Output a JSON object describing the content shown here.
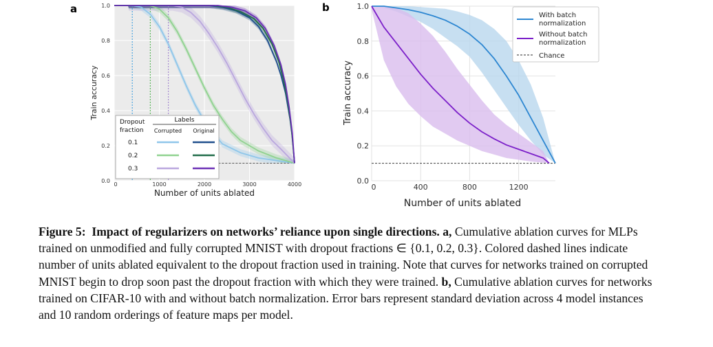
{
  "panel_a": {
    "letter": "a",
    "xlabel": "Number of units ablated",
    "ylabel": "Train accuracy",
    "xticks": [
      "0",
      "1000",
      "2000",
      "3000",
      "4000"
    ],
    "yticks": [
      "0.0",
      "0.2",
      "0.4",
      "0.6",
      "0.8",
      "1.0"
    ],
    "legend": {
      "row_header": "Dropout\nfraction",
      "group_header": "Labels",
      "col_corrupted": "Corrupted",
      "col_original": "Original",
      "rows": [
        "0.1",
        "0.2",
        "0.3"
      ]
    }
  },
  "panel_b": {
    "letter": "b",
    "xlabel": "Number of units ablated",
    "ylabel": "Train accuracy",
    "xticks": [
      "0",
      "400",
      "800",
      "1200"
    ],
    "yticks": [
      "0.0",
      "0.2",
      "0.4",
      "0.6",
      "0.8",
      "1.0"
    ],
    "legend": [
      "With batch normalization",
      "Without batch normalization",
      "Chance"
    ]
  },
  "caption": {
    "label": "Figure 5:",
    "title": "Impact of regularizers on networks’ reliance upon single directions.",
    "a_label": "a,",
    "a_text": "Cumulative ablation curves for MLPs trained on unmodified and fully corrupted MNIST with dropout fractions ∈ {0.1, 0.2, 0.3}. Colored dashed lines indicate number of units ablated equivalent to the dropout fraction used in training. Note that curves for networks trained on corrupted MNIST begin to drop soon past the dropout fraction with which they were trained.",
    "b_label": "b,",
    "b_text": "Cumulative ablation curves for networks trained on CIFAR-10 with and without batch normalization. Error bars represent standard deviation across 4 model instances and 10 random orderings of feature maps per model."
  },
  "colors": {
    "corrupted_0.1": "#8ec6ea",
    "corrupted_0.2": "#8fd28f",
    "corrupted_0.3": "#b9a6de",
    "original_0.1": "#1f4e8c",
    "original_0.2": "#1f6b48",
    "original_0.3": "#6a2fb5",
    "with_bn": "#2c86d1",
    "without_bn": "#7b1fc9",
    "chance": "#555555",
    "plot_bg": "#ebebeb"
  },
  "chart_data": [
    {
      "type": "line",
      "panel": "a",
      "xlabel": "Number of units ablated",
      "ylabel": "Train accuracy",
      "xlim": [
        0,
        4000
      ],
      "ylim": [
        0,
        1
      ],
      "chance": 0.1,
      "dropout_markers": [
        {
          "name": "0.1",
          "x": 400
        },
        {
          "name": "0.2",
          "x": 800
        },
        {
          "name": "0.3",
          "x": 1200
        }
      ],
      "series": [
        {
          "name": "Corrupted 0.1",
          "std": 0.02,
          "points": [
            [
              0,
              1
            ],
            [
              400,
              1
            ],
            [
              600,
              0.99
            ],
            [
              800,
              0.95
            ],
            [
              1000,
              0.88
            ],
            [
              1200,
              0.78
            ],
            [
              1400,
              0.66
            ],
            [
              1600,
              0.54
            ],
            [
              1800,
              0.43
            ],
            [
              2000,
              0.34
            ],
            [
              2200,
              0.27
            ],
            [
              2400,
              0.21
            ],
            [
              2800,
              0.16
            ],
            [
              3200,
              0.13
            ],
            [
              3600,
              0.115
            ],
            [
              4000,
              0.1
            ]
          ]
        },
        {
          "name": "Corrupted 0.2",
          "std": 0.02,
          "points": [
            [
              0,
              1
            ],
            [
              800,
              1
            ],
            [
              1000,
              0.98
            ],
            [
              1200,
              0.93
            ],
            [
              1400,
              0.85
            ],
            [
              1600,
              0.75
            ],
            [
              1800,
              0.64
            ],
            [
              2000,
              0.53
            ],
            [
              2200,
              0.43
            ],
            [
              2400,
              0.35
            ],
            [
              2600,
              0.28
            ],
            [
              2800,
              0.23
            ],
            [
              3200,
              0.17
            ],
            [
              3600,
              0.13
            ],
            [
              4000,
              0.1
            ]
          ]
        },
        {
          "name": "Corrupted 0.3",
          "std": 0.03,
          "points": [
            [
              0,
              1
            ],
            [
              1300,
              1
            ],
            [
              1500,
              0.99
            ],
            [
              1700,
              0.96
            ],
            [
              1900,
              0.91
            ],
            [
              2100,
              0.84
            ],
            [
              2300,
              0.76
            ],
            [
              2500,
              0.67
            ],
            [
              2700,
              0.57
            ],
            [
              2900,
              0.47
            ],
            [
              3100,
              0.38
            ],
            [
              3300,
              0.3
            ],
            [
              3500,
              0.23
            ],
            [
              3700,
              0.18
            ],
            [
              4000,
              0.1
            ]
          ]
        },
        {
          "name": "Original 0.1",
          "std": 0.015,
          "points": [
            [
              0,
              1
            ],
            [
              2100,
              1
            ],
            [
              2400,
              0.99
            ],
            [
              2700,
              0.97
            ],
            [
              3000,
              0.93
            ],
            [
              3200,
              0.88
            ],
            [
              3400,
              0.8
            ],
            [
              3600,
              0.68
            ],
            [
              3700,
              0.6
            ],
            [
              3800,
              0.5
            ],
            [
              3900,
              0.35
            ],
            [
              3950,
              0.25
            ],
            [
              4000,
              0.1
            ]
          ]
        },
        {
          "name": "Original 0.2",
          "std": 0.015,
          "points": [
            [
              0,
              1
            ],
            [
              2200,
              1
            ],
            [
              2500,
              0.99
            ],
            [
              2800,
              0.965
            ],
            [
              3100,
              0.925
            ],
            [
              3300,
              0.87
            ],
            [
              3500,
              0.78
            ],
            [
              3650,
              0.68
            ],
            [
              3750,
              0.58
            ],
            [
              3850,
              0.45
            ],
            [
              3930,
              0.3
            ],
            [
              4000,
              0.1
            ]
          ]
        },
        {
          "name": "Original 0.3",
          "std": 0.015,
          "points": [
            [
              0,
              1
            ],
            [
              2300,
              1
            ],
            [
              2600,
              0.99
            ],
            [
              2900,
              0.97
            ],
            [
              3150,
              0.93
            ],
            [
              3350,
              0.87
            ],
            [
              3550,
              0.77
            ],
            [
              3700,
              0.66
            ],
            [
              3800,
              0.55
            ],
            [
              3880,
              0.42
            ],
            [
              3950,
              0.27
            ],
            [
              4000,
              0.1
            ]
          ]
        }
      ]
    },
    {
      "type": "line",
      "panel": "b",
      "xlabel": "Number of units ablated",
      "ylabel": "Train accuracy",
      "xlim": [
        0,
        1500
      ],
      "ylim": [
        0,
        1
      ],
      "chance": 0.1,
      "series": [
        {
          "name": "With batch normalization",
          "points": [
            [
              0,
              1
            ],
            [
              100,
              1
            ],
            [
              200,
              0.99
            ],
            [
              300,
              0.98
            ],
            [
              400,
              0.965
            ],
            [
              500,
              0.945
            ],
            [
              600,
              0.92
            ],
            [
              700,
              0.885
            ],
            [
              800,
              0.84
            ],
            [
              900,
              0.78
            ],
            [
              1000,
              0.7
            ],
            [
              1100,
              0.6
            ],
            [
              1200,
              0.49
            ],
            [
              1300,
              0.36
            ],
            [
              1400,
              0.23
            ],
            [
              1500,
              0.1
            ]
          ],
          "lower": [
            [
              0,
              1
            ],
            [
              100,
              0.99
            ],
            [
              200,
              0.97
            ],
            [
              300,
              0.94
            ],
            [
              400,
              0.91
            ],
            [
              500,
              0.87
            ],
            [
              600,
              0.82
            ],
            [
              700,
              0.77
            ],
            [
              800,
              0.71
            ],
            [
              900,
              0.62
            ],
            [
              1000,
              0.52
            ],
            [
              1100,
              0.42
            ],
            [
              1200,
              0.32
            ],
            [
              1300,
              0.23
            ],
            [
              1400,
              0.15
            ],
            [
              1500,
              0.1
            ]
          ],
          "upper": [
            [
              0,
              1
            ],
            [
              300,
              1
            ],
            [
              500,
              0.99
            ],
            [
              600,
              0.985
            ],
            [
              700,
              0.97
            ],
            [
              800,
              0.95
            ],
            [
              900,
              0.92
            ],
            [
              1000,
              0.87
            ],
            [
              1100,
              0.8
            ],
            [
              1200,
              0.69
            ],
            [
              1300,
              0.55
            ],
            [
              1400,
              0.36
            ],
            [
              1500,
              0.1
            ]
          ]
        },
        {
          "name": "Without batch normalization",
          "points": [
            [
              0,
              1
            ],
            [
              50,
              0.94
            ],
            [
              100,
              0.88
            ],
            [
              200,
              0.79
            ],
            [
              300,
              0.7
            ],
            [
              400,
              0.61
            ],
            [
              500,
              0.53
            ],
            [
              600,
              0.46
            ],
            [
              700,
              0.39
            ],
            [
              800,
              0.33
            ],
            [
              900,
              0.28
            ],
            [
              1000,
              0.24
            ],
            [
              1100,
              0.205
            ],
            [
              1200,
              0.18
            ],
            [
              1300,
              0.155
            ],
            [
              1400,
              0.13
            ],
            [
              1450,
              0.1
            ]
          ],
          "lower": [
            [
              0,
              0.98
            ],
            [
              100,
              0.69
            ],
            [
              200,
              0.54
            ],
            [
              300,
              0.44
            ],
            [
              400,
              0.37
            ],
            [
              500,
              0.31
            ],
            [
              600,
              0.27
            ],
            [
              700,
              0.23
            ],
            [
              800,
              0.2
            ],
            [
              900,
              0.17
            ],
            [
              1000,
              0.15
            ],
            [
              1100,
              0.13
            ],
            [
              1200,
              0.12
            ],
            [
              1300,
              0.11
            ],
            [
              1450,
              0.1
            ]
          ],
          "upper": [
            [
              0,
              1
            ],
            [
              100,
              1
            ],
            [
              200,
              0.99
            ],
            [
              300,
              0.96
            ],
            [
              400,
              0.9
            ],
            [
              500,
              0.83
            ],
            [
              600,
              0.74
            ],
            [
              700,
              0.64
            ],
            [
              800,
              0.55
            ],
            [
              900,
              0.46
            ],
            [
              1000,
              0.38
            ],
            [
              1100,
              0.32
            ],
            [
              1200,
              0.27
            ],
            [
              1300,
              0.22
            ],
            [
              1400,
              0.17
            ],
            [
              1450,
              0.1
            ]
          ]
        }
      ]
    }
  ]
}
